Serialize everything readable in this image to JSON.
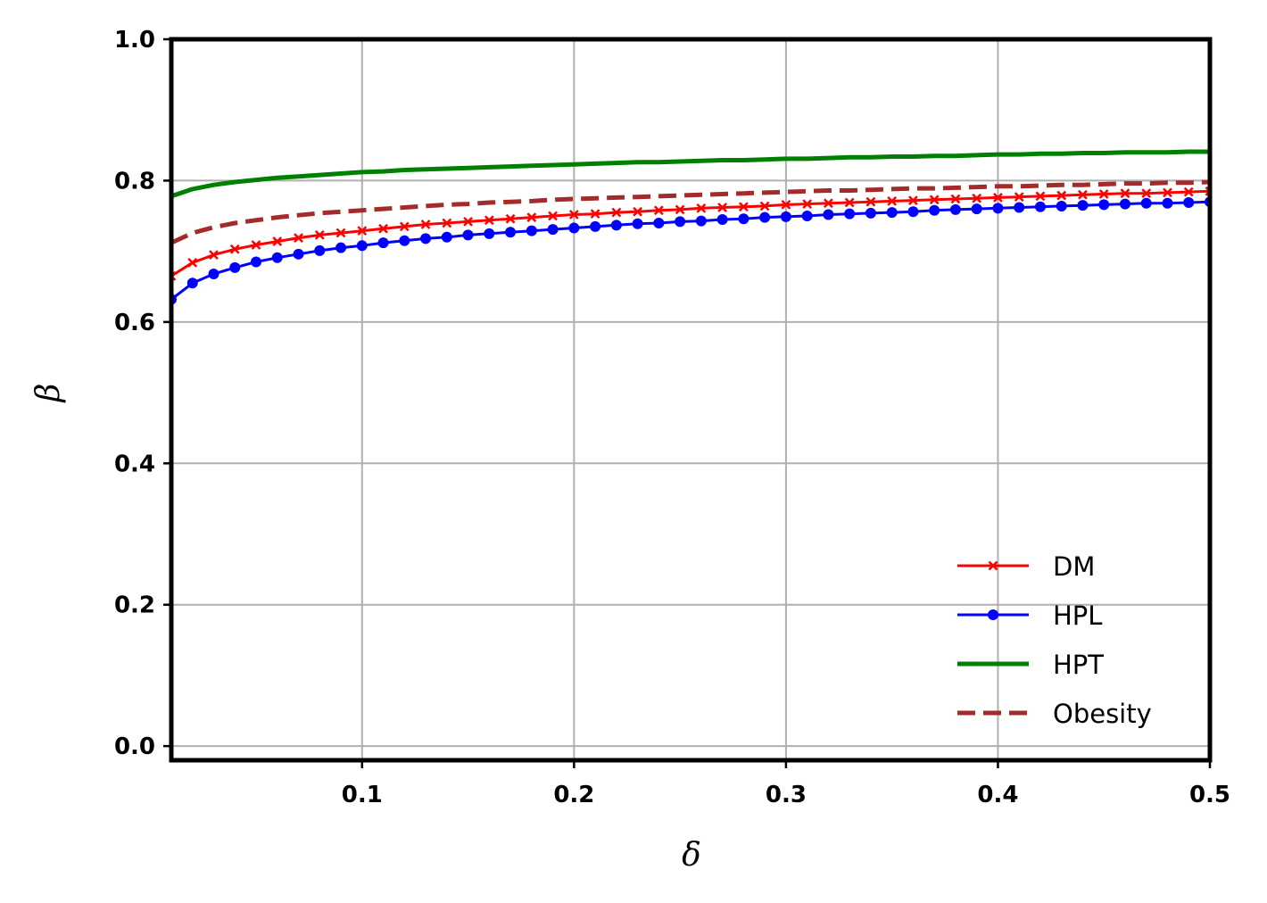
{
  "chart_data": {
    "type": "line",
    "title": "",
    "xlabel": "δ",
    "ylabel": "β",
    "xlim": [
      0.01,
      0.5
    ],
    "ylim": [
      -0.02,
      1.0
    ],
    "xticks": [
      0.1,
      0.2,
      0.3,
      0.4,
      0.5
    ],
    "xtick_labels": [
      "0.1",
      "0.2",
      "0.3",
      "0.4",
      "0.5"
    ],
    "yticks": [
      0.0,
      0.2,
      0.4,
      0.6,
      0.8,
      1.0
    ],
    "ytick_labels": [
      "0.0",
      "0.2",
      "0.4",
      "0.6",
      "0.8",
      "1.0"
    ],
    "grid": true,
    "legend_position": "lower-right",
    "x": [
      0.01,
      0.02,
      0.03,
      0.04,
      0.05,
      0.06,
      0.07,
      0.08,
      0.09,
      0.1,
      0.11,
      0.12,
      0.13,
      0.14,
      0.15,
      0.16,
      0.17,
      0.18,
      0.19,
      0.2,
      0.21,
      0.22,
      0.23,
      0.24,
      0.25,
      0.26,
      0.27,
      0.28,
      0.29,
      0.3,
      0.31,
      0.32,
      0.33,
      0.34,
      0.35,
      0.36,
      0.37,
      0.38,
      0.39,
      0.4,
      0.41,
      0.42,
      0.43,
      0.44,
      0.45,
      0.46,
      0.47,
      0.48,
      0.49,
      0.5
    ],
    "series": [
      {
        "name": "DM",
        "color": "#ff0000",
        "marker": "x",
        "linestyle": "solid",
        "values": [
          0.665,
          0.684,
          0.695,
          0.703,
          0.709,
          0.714,
          0.719,
          0.723,
          0.726,
          0.729,
          0.732,
          0.735,
          0.738,
          0.74,
          0.742,
          0.744,
          0.746,
          0.748,
          0.75,
          0.752,
          0.753,
          0.755,
          0.756,
          0.758,
          0.759,
          0.761,
          0.762,
          0.763,
          0.764,
          0.766,
          0.767,
          0.768,
          0.769,
          0.77,
          0.771,
          0.772,
          0.773,
          0.774,
          0.775,
          0.776,
          0.777,
          0.778,
          0.779,
          0.78,
          0.781,
          0.782,
          0.782,
          0.783,
          0.784,
          0.785
        ]
      },
      {
        "name": "HPL",
        "color": "#0000ff",
        "marker": "o",
        "linestyle": "solid",
        "values": [
          0.632,
          0.655,
          0.668,
          0.677,
          0.685,
          0.691,
          0.696,
          0.701,
          0.705,
          0.708,
          0.712,
          0.715,
          0.718,
          0.72,
          0.723,
          0.725,
          0.727,
          0.729,
          0.731,
          0.733,
          0.735,
          0.737,
          0.739,
          0.74,
          0.742,
          0.743,
          0.745,
          0.746,
          0.748,
          0.749,
          0.75,
          0.752,
          0.753,
          0.754,
          0.755,
          0.756,
          0.758,
          0.759,
          0.76,
          0.761,
          0.762,
          0.763,
          0.764,
          0.765,
          0.766,
          0.767,
          0.768,
          0.768,
          0.769,
          0.77
        ]
      },
      {
        "name": "HPT",
        "color": "#008000",
        "marker": "none",
        "linestyle": "solid",
        "values": [
          0.778,
          0.788,
          0.794,
          0.798,
          0.801,
          0.804,
          0.806,
          0.808,
          0.81,
          0.812,
          0.813,
          0.815,
          0.816,
          0.817,
          0.818,
          0.819,
          0.82,
          0.821,
          0.822,
          0.823,
          0.824,
          0.825,
          0.826,
          0.826,
          0.827,
          0.828,
          0.829,
          0.829,
          0.83,
          0.831,
          0.831,
          0.832,
          0.833,
          0.833,
          0.834,
          0.834,
          0.835,
          0.835,
          0.836,
          0.837,
          0.837,
          0.838,
          0.838,
          0.839,
          0.839,
          0.84,
          0.84,
          0.84,
          0.841,
          0.841
        ]
      },
      {
        "name": "Obesity",
        "color": "#a52a2a",
        "marker": "none",
        "linestyle": "dashed",
        "values": [
          0.712,
          0.726,
          0.734,
          0.74,
          0.744,
          0.748,
          0.751,
          0.754,
          0.756,
          0.758,
          0.76,
          0.762,
          0.764,
          0.766,
          0.767,
          0.769,
          0.77,
          0.771,
          0.773,
          0.774,
          0.775,
          0.776,
          0.777,
          0.778,
          0.779,
          0.78,
          0.781,
          0.782,
          0.783,
          0.784,
          0.785,
          0.786,
          0.786,
          0.787,
          0.788,
          0.789,
          0.789,
          0.79,
          0.791,
          0.792,
          0.792,
          0.793,
          0.794,
          0.794,
          0.795,
          0.796,
          0.796,
          0.797,
          0.797,
          0.798
        ]
      }
    ]
  }
}
